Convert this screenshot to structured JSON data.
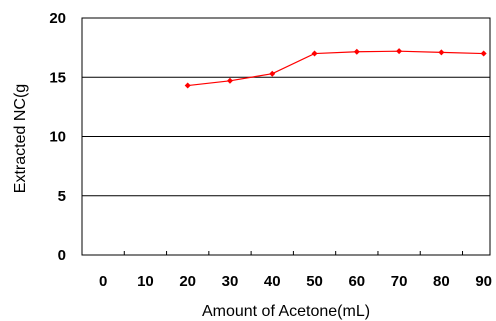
{
  "chart_data": {
    "type": "line",
    "title": "",
    "xlabel": "Amount of Acetone(mL)",
    "ylabel": "Extracted NC(g",
    "x": [
      20,
      30,
      40,
      50,
      60,
      70,
      80,
      90
    ],
    "series": [
      {
        "values": [
          14.3,
          14.7,
          15.3,
          17.0,
          17.15,
          17.2,
          17.1,
          17.0
        ],
        "color": "#ff0000"
      }
    ],
    "xticks": [
      "0",
      "10",
      "20",
      "30",
      "40",
      "50",
      "60",
      "70",
      "80",
      "90"
    ],
    "yticks": [
      "0",
      "5",
      "10",
      "15",
      "20"
    ],
    "xlim": [
      0,
      90
    ],
    "ylim": [
      0,
      20
    ],
    "grid": "horizontal",
    "legend": "none"
  }
}
